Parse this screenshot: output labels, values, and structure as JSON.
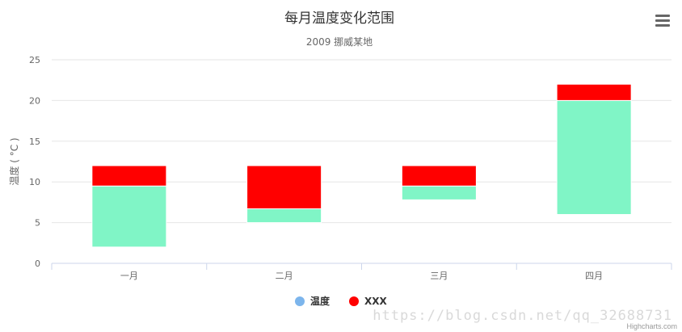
{
  "chart_data": {
    "type": "bar",
    "title": "每月温度变化范围",
    "subtitle": "2009 挪威某地",
    "xlabel": "",
    "ylabel": "温度 ( °C )",
    "categories": [
      "一月",
      "二月",
      "三月",
      "四月"
    ],
    "ylim": [
      0,
      25
    ],
    "yticks": [
      0,
      5,
      10,
      15,
      20,
      25
    ],
    "grid": true,
    "legend_position": "bottom-center",
    "series": [
      {
        "name": "温度",
        "kind": "range",
        "color": "#80f5c6",
        "legend_color": "#7cb5ec",
        "low": [
          2,
          5,
          7.8,
          6
        ],
        "high": [
          9.5,
          6.7,
          9.5,
          20
        ]
      },
      {
        "name": "XXX",
        "kind": "range",
        "color": "#ff0000",
        "legend_color": "#ff0000",
        "low": [
          9.5,
          6.7,
          9.5,
          20
        ],
        "high": [
          12,
          12,
          12,
          22
        ]
      }
    ]
  },
  "menu": {
    "icon": "hamburger-menu-icon"
  },
  "watermark": "https://blog.csdn.net/qq_32688731",
  "credits": "Highcharts.com"
}
